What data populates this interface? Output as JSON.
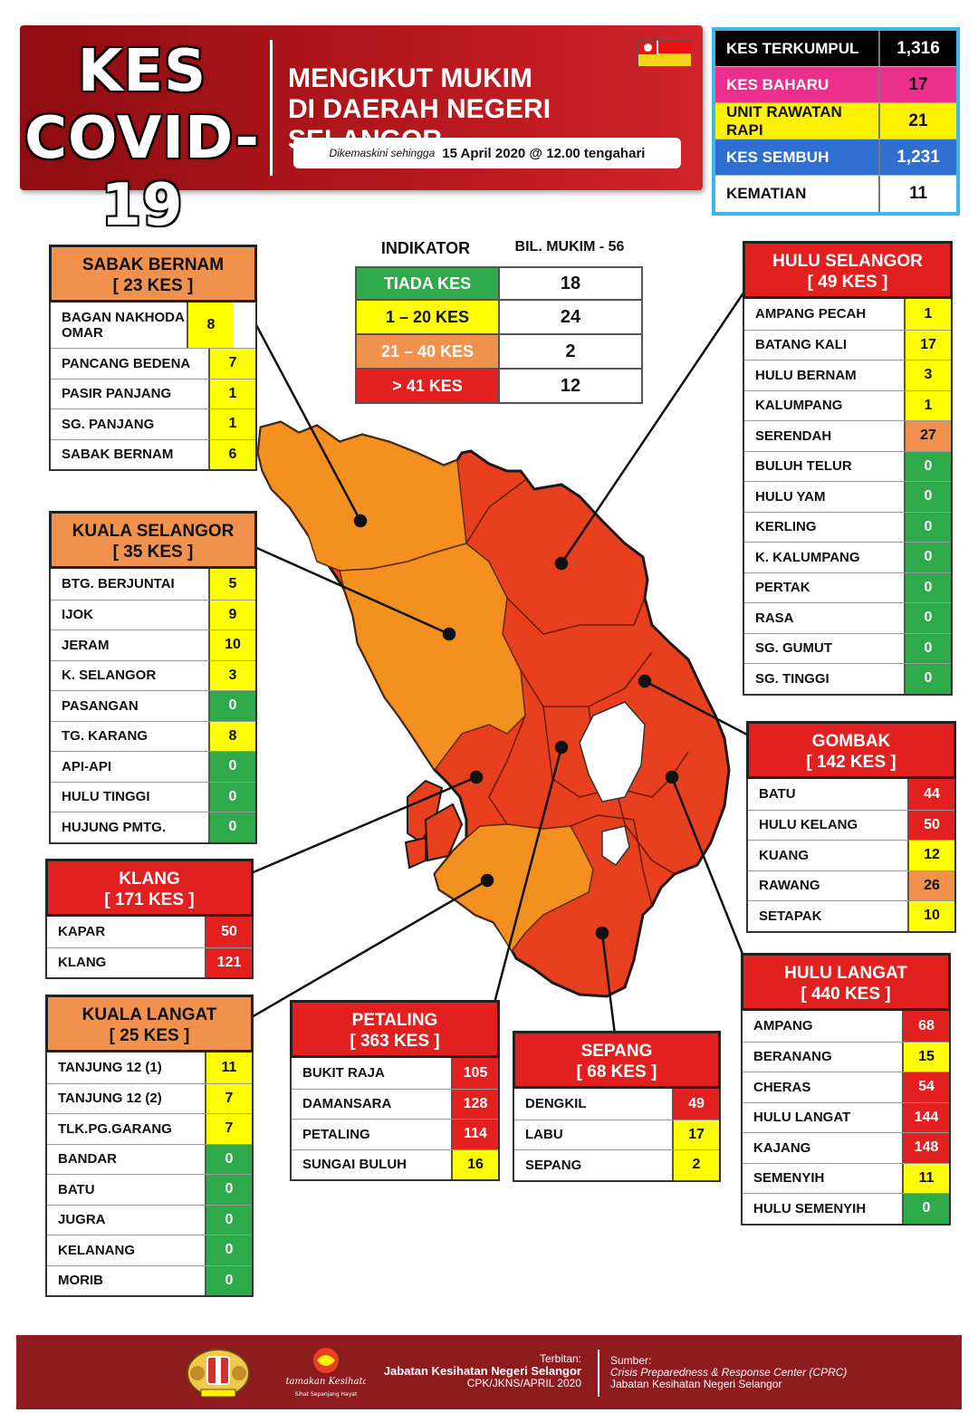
{
  "header": {
    "title_line1": "KES",
    "title_line2": "COVID-19",
    "subtitle_line1": "MENGIKUT MUKIM",
    "subtitle_line2": "DI DAERAH NEGERI SELANGOR",
    "updated_label": "Dikemaskini sehingga",
    "updated_value": "15 April 2020 @ 12.00 tengahari",
    "flag_icon": "selangor-flag-icon"
  },
  "summary": [
    {
      "label": "KES TERKUMPUL",
      "value": "1,316",
      "label_bg": "#000000",
      "label_color": "#ffffff",
      "value_bg": "#000000",
      "value_color": "#ffffff"
    },
    {
      "label": "KES BAHARU",
      "value": "17",
      "label_bg": "#ec2f8d",
      "label_color": "#ffffff",
      "value_bg": "#ec2f8d",
      "value_color": "#111111"
    },
    {
      "label": "UNIT RAWATAN RAPI",
      "value": "21",
      "label_bg": "#fff200",
      "label_color": "#111111",
      "value_bg": "#fff200",
      "value_color": "#111111"
    },
    {
      "label": "KES SEMBUH",
      "value": "1,231",
      "label_bg": "#2f6fd1",
      "label_color": "#ffffff",
      "value_bg": "#2f6fd1",
      "value_color": "#ffffff"
    },
    {
      "label": "KEMATIAN",
      "value": "11",
      "label_bg": "#ffffff",
      "label_color": "#111111",
      "value_bg": "#ffffff",
      "value_color": "#111111"
    }
  ],
  "legend": {
    "header_left": "INDIKATOR",
    "header_right": "BIL. MUKIM - 56",
    "rows": [
      {
        "label": "TIADA KES",
        "count": "18",
        "color": "#2eaa4a",
        "text_color": "#ffffff"
      },
      {
        "label": "1 – 20 KES",
        "count": "24",
        "color": "#ffff00",
        "text_color": "#111111"
      },
      {
        "label": "21 – 40 KES",
        "count": "2",
        "color": "#f0914e",
        "text_color": "#ffffff"
      },
      {
        "label": "> 41 KES",
        "count": "12",
        "color": "#e32020",
        "text_color": "#ffffff"
      }
    ]
  },
  "colors": {
    "none": "#2eaa4a",
    "low": "#ffff00",
    "mid": "#f0914e",
    "high": "#e32020",
    "map_high": "#e8401e",
    "map_mid": "#f39020"
  },
  "districts": {
    "sabak_bernam": {
      "name": "SABAK BERNAM",
      "total": "[ 23 KES ]",
      "tier": "orange",
      "mukim": [
        {
          "name": "BAGAN NAKHODA OMAR",
          "value": "8",
          "level": "low"
        },
        {
          "name": "PANCANG BEDENA",
          "value": "7",
          "level": "low"
        },
        {
          "name": "PASIR PANJANG",
          "value": "1",
          "level": "low"
        },
        {
          "name": "SG. PANJANG",
          "value": "1",
          "level": "low"
        },
        {
          "name": "SABAK BERNAM",
          "value": "6",
          "level": "low"
        }
      ]
    },
    "kuala_selangor": {
      "name": "KUALA SELANGOR",
      "total": "[ 35 KES ]",
      "tier": "orange",
      "mukim": [
        {
          "name": "BTG. BERJUNTAI",
          "value": "5",
          "level": "low"
        },
        {
          "name": "IJOK",
          "value": "9",
          "level": "low"
        },
        {
          "name": "JERAM",
          "value": "10",
          "level": "low"
        },
        {
          "name": "K. SELANGOR",
          "value": "3",
          "level": "low"
        },
        {
          "name": "PASANGAN",
          "value": "0",
          "level": "none"
        },
        {
          "name": "TG. KARANG",
          "value": "8",
          "level": "low"
        },
        {
          "name": "API-API",
          "value": "0",
          "level": "none"
        },
        {
          "name": "HULU TINGGI",
          "value": "0",
          "level": "none"
        },
        {
          "name": "HUJUNG PMTG.",
          "value": "0",
          "level": "none"
        }
      ]
    },
    "klang": {
      "name": "KLANG",
      "total": "[ 171 KES ]",
      "tier": "red",
      "mukim": [
        {
          "name": "KAPAR",
          "value": "50",
          "level": "high"
        },
        {
          "name": "KLANG",
          "value": "121",
          "level": "high"
        }
      ]
    },
    "kuala_langat": {
      "name": "KUALA LANGAT",
      "total": "[ 25 KES ]",
      "tier": "orange",
      "mukim": [
        {
          "name": "TANJUNG 12 (1)",
          "value": "11",
          "level": "low"
        },
        {
          "name": "TANJUNG 12 (2)",
          "value": "7",
          "level": "low"
        },
        {
          "name": "TLK.PG.GARANG",
          "value": "7",
          "level": "low"
        },
        {
          "name": "BANDAR",
          "value": "0",
          "level": "none"
        },
        {
          "name": "BATU",
          "value": "0",
          "level": "none"
        },
        {
          "name": "JUGRA",
          "value": "0",
          "level": "none"
        },
        {
          "name": "KELANANG",
          "value": "0",
          "level": "none"
        },
        {
          "name": "MORIB",
          "value": "0",
          "level": "none"
        }
      ]
    },
    "petaling": {
      "name": "PETALING",
      "total": "[ 363 KES ]",
      "tier": "red",
      "mukim": [
        {
          "name": "BUKIT RAJA",
          "value": "105",
          "level": "high"
        },
        {
          "name": "DAMANSARA",
          "value": "128",
          "level": "high"
        },
        {
          "name": "PETALING",
          "value": "114",
          "level": "high"
        },
        {
          "name": "SUNGAI BULUH",
          "value": "16",
          "level": "low"
        }
      ]
    },
    "sepang": {
      "name": "SEPANG",
      "total": "[ 68 KES ]",
      "tier": "red",
      "mukim": [
        {
          "name": "DENGKIL",
          "value": "49",
          "level": "high"
        },
        {
          "name": "LABU",
          "value": "17",
          "level": "low"
        },
        {
          "name": "SEPANG",
          "value": "2",
          "level": "low"
        }
      ]
    },
    "hulu_selangor": {
      "name": "HULU SELANGOR",
      "total": "[ 49 KES ]",
      "tier": "red",
      "mukim": [
        {
          "name": "AMPANG PECAH",
          "value": "1",
          "level": "low"
        },
        {
          "name": "BATANG KALI",
          "value": "17",
          "level": "low"
        },
        {
          "name": "HULU BERNAM",
          "value": "3",
          "level": "low"
        },
        {
          "name": "KALUMPANG",
          "value": "1",
          "level": "low"
        },
        {
          "name": "SERENDAH",
          "value": "27",
          "level": "mid"
        },
        {
          "name": "BULUH TELUR",
          "value": "0",
          "level": "none"
        },
        {
          "name": "HULU YAM",
          "value": "0",
          "level": "none"
        },
        {
          "name": "KERLING",
          "value": "0",
          "level": "none"
        },
        {
          "name": "K. KALUMPANG",
          "value": "0",
          "level": "none"
        },
        {
          "name": "PERTAK",
          "value": "0",
          "level": "none"
        },
        {
          "name": "RASA",
          "value": "0",
          "level": "none"
        },
        {
          "name": "SG. GUMUT",
          "value": "0",
          "level": "none"
        },
        {
          "name": "SG. TINGGI",
          "value": "0",
          "level": "none"
        }
      ]
    },
    "gombak": {
      "name": "GOMBAK",
      "total": "[ 142 KES ]",
      "tier": "red",
      "mukim": [
        {
          "name": "BATU",
          "value": "44",
          "level": "high"
        },
        {
          "name": "HULU KELANG",
          "value": "50",
          "level": "high"
        },
        {
          "name": "KUANG",
          "value": "12",
          "level": "low"
        },
        {
          "name": "RAWANG",
          "value": "26",
          "level": "mid"
        },
        {
          "name": "SETAPAK",
          "value": "10",
          "level": "low"
        }
      ]
    },
    "hulu_langat": {
      "name": "HULU LANGAT",
      "total": "[ 440 KES ]",
      "tier": "red",
      "mukim": [
        {
          "name": "AMPANG",
          "value": "68",
          "level": "high"
        },
        {
          "name": "BERANANG",
          "value": "15",
          "level": "low"
        },
        {
          "name": "CHERAS",
          "value": "54",
          "level": "high"
        },
        {
          "name": "HULU LANGAT",
          "value": "144",
          "level": "high"
        },
        {
          "name": "KAJANG",
          "value": "148",
          "level": "high"
        },
        {
          "name": "SEMENYIH",
          "value": "11",
          "level": "low"
        },
        {
          "name": "HULU SEMENYIH",
          "value": "0",
          "level": "none"
        }
      ]
    }
  },
  "footer": {
    "publisher_label": "Terbitan:",
    "publisher_name": "Jabatan Kesihatan Negeri Selangor",
    "publisher_code": "CPK/JKNS/APRIL 2020",
    "source_label": "Sumber:",
    "source_line1": "Crisis Preparedness & Response Center (CPRC)",
    "source_line2": "Jabatan Kesihatan Negeri Selangor",
    "logo1_icon": "selangor-crest-icon",
    "logo2_icon": "jkns-logo-icon",
    "logo2_text": "Utamakan Kesihatan",
    "logo2_tagline": "Sihat Sepanjang Hayat"
  }
}
